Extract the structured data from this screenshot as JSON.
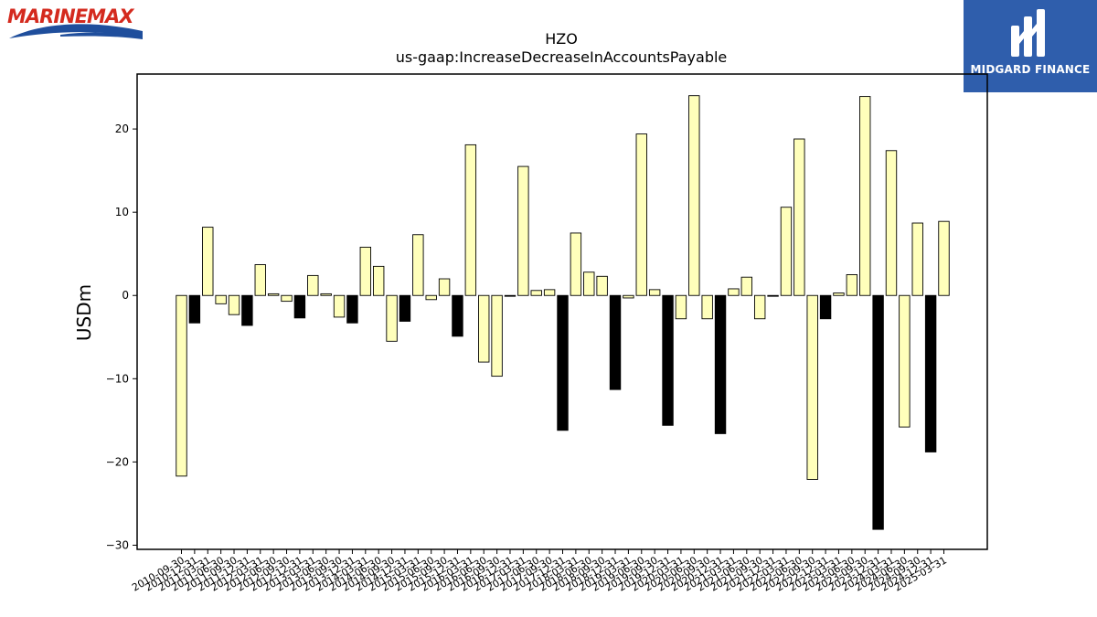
{
  "branding": {
    "left_logo_text": "MARINEMAX",
    "right_logo_text": "MIDGARD FINANCE",
    "left_logo_color": "#d42a1e",
    "left_logo_wave_color": "#1f4e9c",
    "right_logo_bg": "#2f5eac"
  },
  "chart_data": {
    "type": "bar",
    "title": "HZO",
    "subtitle": "us-gaap:IncreaseDecreaseInAccountsPayable",
    "xlabel": "",
    "ylabel": "USDm",
    "ylim": [
      -30.5,
      26.6
    ],
    "yticks": [
      -30,
      -20,
      -10,
      0,
      10,
      20
    ],
    "grid": false,
    "colors": {
      "positive_quarter": "#ffffbb",
      "fiscal_year_end": "#000000",
      "edge": "#000000"
    },
    "categories": [
      "2010-09-30",
      "2010-12-31",
      "2011-03-31",
      "2011-06-30",
      "2011-09-30",
      "2011-12-31",
      "2012-03-31",
      "2012-06-30",
      "2012-09-30",
      "2012-12-31",
      "2013-03-31",
      "2013-06-30",
      "2013-09-30",
      "2013-12-31",
      "2014-03-31",
      "2014-06-30",
      "2014-09-30",
      "2014-12-31",
      "2015-03-31",
      "2015-06-30",
      "2015-09-30",
      "2015-12-31",
      "2016-03-31",
      "2016-06-30",
      "2016-09-30",
      "2016-12-31",
      "2017-03-31",
      "2017-06-30",
      "2017-09-30",
      "2017-12-31",
      "2018-03-31",
      "2018-06-30",
      "2018-09-30",
      "2018-12-31",
      "2019-03-31",
      "2019-06-30",
      "2019-09-30",
      "2019-12-31",
      "2020-03-31",
      "2020-06-30",
      "2020-09-30",
      "2020-12-31",
      "2021-03-31",
      "2021-06-30",
      "2021-09-30",
      "2021-12-31",
      "2022-03-31",
      "2022-06-30",
      "2022-09-30",
      "2022-12-31",
      "2023-03-31",
      "2023-06-30",
      "2023-09-30",
      "2023-12-31",
      "2024-03-31",
      "2024-06-30",
      "2024-09-30",
      "2024-12-31",
      "2025-03-31"
    ],
    "values": [
      -21.7,
      -3.3,
      8.2,
      -1.0,
      -2.3,
      -3.6,
      3.7,
      0.2,
      -0.7,
      -2.7,
      2.4,
      0.2,
      -2.6,
      -3.3,
      5.8,
      3.5,
      -5.5,
      -3.1,
      7.3,
      -0.5,
      2.0,
      -4.9,
      18.1,
      -8.0,
      -9.7,
      -0.1,
      15.5,
      0.6,
      0.7,
      -16.2,
      7.5,
      2.8,
      2.3,
      -11.3,
      -0.3,
      19.4,
      0.7,
      -15.6,
      -2.8,
      24.0,
      -2.8,
      -16.6,
      0.8,
      2.2,
      -2.8,
      -0.1,
      10.6,
      18.8,
      -22.1,
      -2.8,
      0.3,
      2.5,
      23.9,
      -28.1,
      17.4,
      -15.8,
      8.7,
      -18.8,
      8.9
    ],
    "highlight": [
      false,
      true,
      false,
      false,
      false,
      true,
      false,
      false,
      false,
      true,
      false,
      false,
      false,
      true,
      false,
      false,
      false,
      true,
      false,
      false,
      false,
      true,
      false,
      false,
      false,
      true,
      false,
      false,
      false,
      true,
      false,
      false,
      false,
      true,
      false,
      false,
      false,
      true,
      false,
      false,
      false,
      true,
      false,
      false,
      false,
      true,
      false,
      false,
      false,
      true,
      false,
      false,
      false,
      true,
      false,
      false,
      false,
      true,
      false
    ]
  }
}
